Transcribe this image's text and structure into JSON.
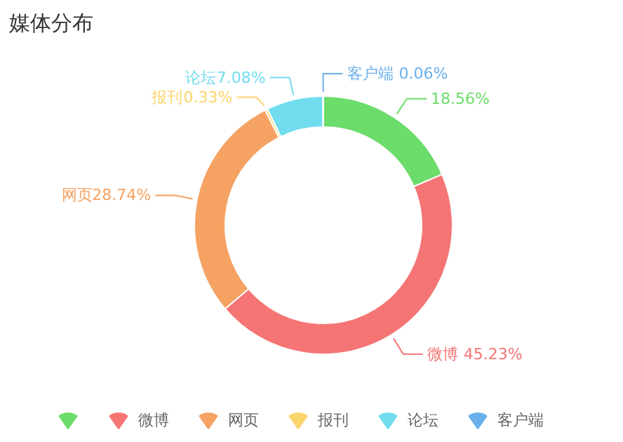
{
  "chart_data": {
    "type": "donut",
    "title": "媒体分布",
    "categories": [
      null,
      "微博",
      "网页",
      "报刊",
      "论坛",
      "客户端"
    ],
    "values": [
      18.56,
      45.23,
      28.74,
      0.33,
      7.08,
      0.06
    ],
    "colors": [
      "#6cdc6a",
      "#f57474",
      "#f5a263",
      "#fbd46b",
      "#72dcef",
      "#6ab0ec"
    ],
    "value_labels": [
      "18.56%",
      "45.23%",
      "28.74%",
      "0.33%",
      "7.08%",
      "0.06%"
    ],
    "legend": "bottom"
  }
}
